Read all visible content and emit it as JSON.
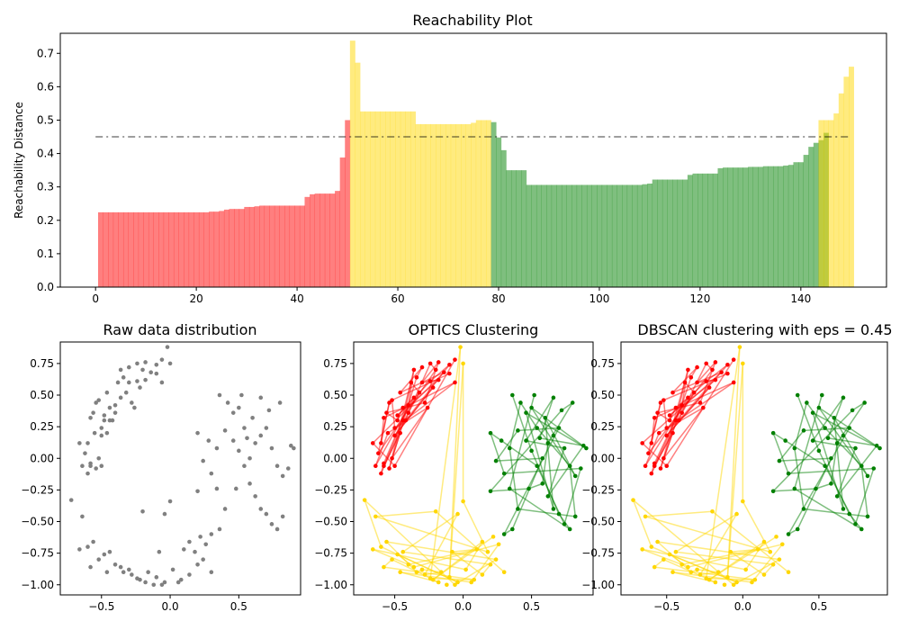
{
  "colors": {
    "cluster_red": "#ff0000",
    "cluster_yellow": "#ffd700",
    "cluster_green": "#008000",
    "raw_points": "#808080",
    "threshold_line": "#000000"
  },
  "chart_data": [
    {
      "id": "reachability",
      "type": "bar",
      "title": "Reachability Plot",
      "xlabel": "",
      "ylabel": "Reachability Distance",
      "xlim": [
        -7,
        157
      ],
      "ylim": [
        0,
        0.76
      ],
      "xticks": [
        "0",
        "20",
        "40",
        "60",
        "80",
        "100",
        "120",
        "140"
      ],
      "yticks": [
        "0.0",
        "0.1",
        "0.2",
        "0.3",
        "0.4",
        "0.5",
        "0.6",
        "0.7"
      ],
      "threshold": 0.45,
      "segments": [
        {
          "cluster": "red",
          "start": 0,
          "values": [
            0.224,
            0.224,
            0.224,
            0.224,
            0.224,
            0.224,
            0.224,
            0.224,
            0.224,
            0.224,
            0.224,
            0.224,
            0.224,
            0.224,
            0.224,
            0.224,
            0.224,
            0.224,
            0.224,
            0.224,
            0.224,
            0.224,
            0.226,
            0.226,
            0.228,
            0.232,
            0.234,
            0.234,
            0.234,
            0.24,
            0.24,
            0.242,
            0.244,
            0.244,
            0.244,
            0.244,
            0.244,
            0.244,
            0.244,
            0.244,
            0.244,
            0.27,
            0.278,
            0.28,
            0.28,
            0.28,
            0.28,
            0.288,
            0.388,
            0.5
          ]
        },
        {
          "cluster": "yellow",
          "start": 50,
          "values": [
            0.738,
            0.672,
            0.526,
            0.526,
            0.526,
            0.526,
            0.526,
            0.526,
            0.526,
            0.526,
            0.526,
            0.526,
            0.526,
            0.488,
            0.488,
            0.488,
            0.488,
            0.488,
            0.488,
            0.488,
            0.488,
            0.488,
            0.488,
            0.488,
            0.492,
            0.5,
            0.5,
            0.5
          ]
        },
        {
          "cluster": "green",
          "start": 78,
          "values": [
            0.494,
            0.448,
            0.41,
            0.35,
            0.35,
            0.35,
            0.35,
            0.306,
            0.306,
            0.306,
            0.306,
            0.306,
            0.306,
            0.306,
            0.306,
            0.306,
            0.306,
            0.306,
            0.306,
            0.306,
            0.306,
            0.306,
            0.306,
            0.306,
            0.306,
            0.306,
            0.306,
            0.306,
            0.306,
            0.306,
            0.308,
            0.31,
            0.322,
            0.322,
            0.322,
            0.322,
            0.322,
            0.322,
            0.322,
            0.336,
            0.34,
            0.34,
            0.34,
            0.34,
            0.34,
            0.356,
            0.358,
            0.358,
            0.358,
            0.358,
            0.358,
            0.36,
            0.36,
            0.36,
            0.362,
            0.362,
            0.362,
            0.362,
            0.364,
            0.366,
            0.374,
            0.374,
            0.396,
            0.42,
            0.432,
            0.44,
            0.462
          ]
        },
        {
          "cluster": "yellow",
          "start": 143,
          "values": [
            0.5,
            0.5,
            0.5,
            0.52,
            0.58,
            0.63,
            0.66
          ]
        }
      ]
    },
    {
      "id": "raw",
      "type": "scatter",
      "title": "Raw data distribution",
      "xlim": [
        -0.8,
        0.95
      ],
      "ylim": [
        -1.08,
        0.92
      ],
      "xticks": [
        "−0.5",
        "0.0",
        "0.5"
      ],
      "yticks": [
        "0.75",
        "0.50",
        "0.25",
        "0.00",
        "−0.25",
        "−0.50",
        "−0.75",
        "−1.00"
      ],
      "points": [
        [
          -0.6,
          0.12
        ],
        [
          -0.55,
          0.2
        ],
        [
          -0.5,
          0.24
        ],
        [
          -0.48,
          0.34
        ],
        [
          -0.44,
          0.3
        ],
        [
          -0.4,
          0.42
        ],
        [
          -0.36,
          0.48
        ],
        [
          -0.32,
          0.52
        ],
        [
          -0.28,
          0.44
        ],
        [
          -0.22,
          0.56
        ],
        [
          -0.18,
          0.62
        ],
        [
          -0.14,
          0.68
        ],
        [
          -0.1,
          0.74
        ],
        [
          -0.06,
          0.78
        ],
        [
          -0.02,
          0.88
        ],
        [
          0.0,
          0.75
        ],
        [
          -0.58,
          0.32
        ],
        [
          -0.52,
          0.46
        ],
        [
          -0.46,
          0.52
        ],
        [
          -0.38,
          0.6
        ],
        [
          -0.34,
          0.64
        ],
        [
          -0.3,
          0.72
        ],
        [
          -0.24,
          0.75
        ],
        [
          -0.2,
          0.7
        ],
        [
          -0.56,
          0.36
        ],
        [
          -0.5,
          0.18
        ],
        [
          -0.62,
          0.04
        ],
        [
          -0.58,
          -0.04
        ],
        [
          -0.54,
          -0.08
        ],
        [
          -0.6,
          -0.12
        ],
        [
          -0.66,
          0.12
        ],
        [
          -0.52,
          0.0
        ],
        [
          -0.42,
          0.3
        ],
        [
          -0.3,
          0.6
        ],
        [
          -0.36,
          0.7
        ],
        [
          -0.44,
          0.4
        ],
        [
          -0.4,
          0.36
        ],
        [
          -0.48,
          0.3
        ],
        [
          -0.26,
          0.4
        ],
        [
          -0.24,
          0.61
        ],
        [
          -0.18,
          0.76
        ],
        [
          -0.1,
          0.67
        ],
        [
          -0.06,
          0.6
        ],
        [
          -0.54,
          0.44
        ],
        [
          -0.46,
          0.2
        ],
        [
          -0.64,
          -0.06
        ],
        [
          -0.58,
          -0.06
        ],
        [
          -0.5,
          -0.06
        ],
        [
          0.2,
          0.2
        ],
        [
          0.28,
          0.14
        ],
        [
          0.34,
          0.08
        ],
        [
          0.4,
          0.22
        ],
        [
          0.46,
          0.14
        ],
        [
          0.5,
          0.06
        ],
        [
          0.54,
          -0.06
        ],
        [
          0.58,
          0.0
        ],
        [
          0.62,
          0.12
        ],
        [
          0.66,
          0.18
        ],
        [
          0.7,
          0.24
        ],
        [
          0.74,
          0.08
        ],
        [
          0.78,
          -0.06
        ],
        [
          0.82,
          -0.14
        ],
        [
          0.86,
          -0.08
        ],
        [
          0.88,
          0.1
        ],
        [
          0.9,
          0.08
        ],
        [
          0.8,
          0.44
        ],
        [
          0.72,
          0.38
        ],
        [
          0.66,
          0.48
        ],
        [
          0.6,
          0.32
        ],
        [
          0.56,
          0.16
        ],
        [
          0.5,
          0.4
        ],
        [
          0.46,
          0.36
        ],
        [
          0.42,
          0.44
        ],
        [
          0.36,
          0.5
        ],
        [
          0.52,
          0.5
        ],
        [
          0.54,
          0.24
        ],
        [
          0.58,
          -0.2
        ],
        [
          0.62,
          -0.3
        ],
        [
          0.66,
          -0.4
        ],
        [
          0.7,
          -0.44
        ],
        [
          0.74,
          -0.52
        ],
        [
          0.78,
          -0.56
        ],
        [
          0.82,
          -0.46
        ],
        [
          0.48,
          -0.24
        ],
        [
          0.4,
          -0.4
        ],
        [
          0.36,
          -0.56
        ],
        [
          0.3,
          -0.6
        ],
        [
          0.26,
          -0.68
        ],
        [
          0.22,
          -0.62
        ],
        [
          0.18,
          -0.74
        ],
        [
          0.1,
          -0.72
        ],
        [
          0.14,
          -0.66
        ],
        [
          0.3,
          -0.12
        ],
        [
          0.24,
          -0.02
        ],
        [
          0.2,
          -0.26
        ],
        [
          0.34,
          -0.24
        ],
        [
          -0.72,
          -0.33
        ],
        [
          -0.64,
          -0.46
        ],
        [
          -0.56,
          -0.66
        ],
        [
          -0.48,
          -0.76
        ],
        [
          -0.4,
          -0.84
        ],
        [
          -0.34,
          -0.9
        ],
        [
          -0.28,
          -0.92
        ],
        [
          -0.22,
          -0.96
        ],
        [
          -0.16,
          -0.9
        ],
        [
          -0.1,
          -0.94
        ],
        [
          -0.04,
          -0.98
        ],
        [
          0.02,
          -0.88
        ],
        [
          0.08,
          -0.96
        ],
        [
          0.14,
          -0.92
        ],
        [
          -0.6,
          -0.7
        ],
        [
          -0.52,
          -0.8
        ],
        [
          -0.44,
          -0.74
        ],
        [
          -0.36,
          -0.86
        ],
        [
          -0.3,
          -0.88
        ],
        [
          -0.24,
          -0.95
        ],
        [
          -0.18,
          -0.98
        ],
        [
          -0.08,
          -0.74
        ],
        [
          -0.2,
          -0.42
        ],
        [
          -0.04,
          -0.44
        ],
        [
          0.0,
          -0.34
        ],
        [
          0.2,
          -0.84
        ],
        [
          0.24,
          -0.8
        ],
        [
          0.3,
          -0.9
        ],
        [
          -0.66,
          -0.72
        ],
        [
          -0.58,
          -0.86
        ],
        [
          -0.46,
          -0.9
        ],
        [
          -0.12,
          -1.0
        ],
        [
          -0.06,
          -1.0
        ],
        [
          0.06,
          -0.98
        ]
      ]
    },
    {
      "id": "optics",
      "type": "scatter",
      "title": "OPTICS Clustering",
      "xlim": [
        -0.8,
        0.95
      ],
      "ylim": [
        -1.08,
        0.92
      ],
      "xticks": [
        "−0.5",
        "0.0",
        "0.5"
      ],
      "yticks": [
        "0.75",
        "0.50",
        "0.25",
        "0.00",
        "−0.25",
        "−0.50",
        "−0.75",
        "−1.00"
      ]
    },
    {
      "id": "dbscan",
      "type": "scatter",
      "title": "DBSCAN clustering with eps = 0.45",
      "xlim": [
        -0.8,
        0.95
      ],
      "ylim": [
        -1.08,
        0.92
      ],
      "xticks": [
        "−0.5",
        "0.0",
        "0.5"
      ],
      "yticks": [
        "0.75",
        "0.50",
        "0.25",
        "0.00",
        "−0.25",
        "−0.50",
        "−0.75",
        "−1.00"
      ]
    }
  ]
}
